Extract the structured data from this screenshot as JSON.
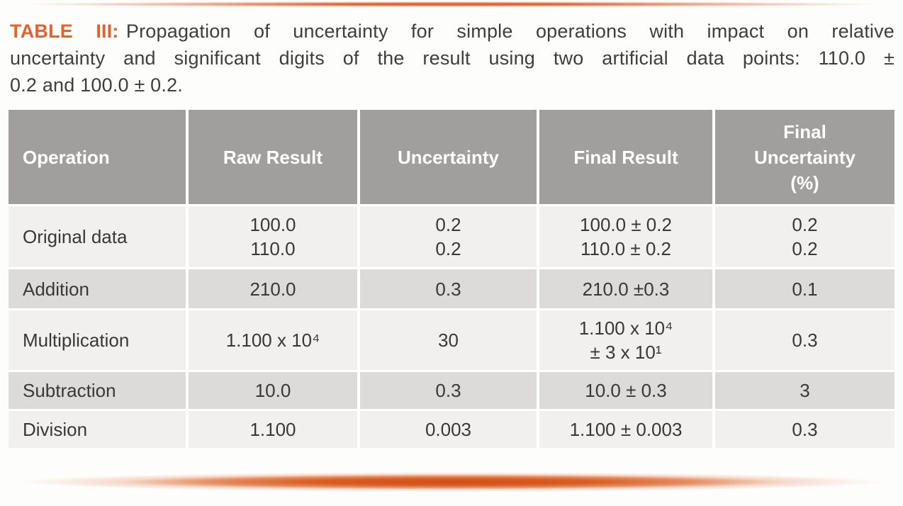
{
  "colors": {
    "accent_orange": "#e2622e",
    "accent_deep_orange": "#cf4e15",
    "header_gray": "#a09f9d",
    "row_light": "#f1f0ee",
    "row_shade": "#dcdbd9"
  },
  "caption": {
    "label": "TABLE III:",
    "line1_rest": "Propagation of uncertainty for simple operations with impact on relative",
    "line2": "uncertainty and significant digits of the result using two artificial data points: 110.0 ±",
    "line3": "0.2 and 100.0 ± 0.2."
  },
  "table": {
    "headers": [
      {
        "lines": [
          "Operation"
        ]
      },
      {
        "lines": [
          "Raw Result"
        ]
      },
      {
        "lines": [
          "Uncertainty"
        ]
      },
      {
        "lines": [
          "Final Result"
        ]
      },
      {
        "lines": [
          "Final",
          "Uncertainty",
          "(%)"
        ]
      }
    ],
    "rows": [
      {
        "operation": "Original data",
        "raw_result": [
          "100.0",
          "110.0"
        ],
        "uncertainty": [
          "0.2",
          "0.2"
        ],
        "final_result": [
          "100.0 ± 0.2",
          "110.0 ± 0.2"
        ],
        "final_uncertainty_pct": [
          "0.2",
          "0.2"
        ]
      },
      {
        "operation": "Addition",
        "raw_result": [
          "210.0"
        ],
        "uncertainty": [
          "0.3"
        ],
        "final_result": [
          "210.0 ±0.3"
        ],
        "final_uncertainty_pct": [
          "0.1"
        ]
      },
      {
        "operation": "Multiplication",
        "raw_result": [
          "1.100 x 10⁴"
        ],
        "uncertainty": [
          "30"
        ],
        "final_result": [
          "1.100 x 10⁴",
          "± 3 x 10¹"
        ],
        "final_uncertainty_pct": [
          "0.3"
        ]
      },
      {
        "operation": "Subtraction",
        "raw_result": [
          "10.0"
        ],
        "uncertainty": [
          "0.3"
        ],
        "final_result": [
          "10.0 ± 0.3"
        ],
        "final_uncertainty_pct": [
          "3"
        ]
      },
      {
        "operation": "Division",
        "raw_result": [
          "1.100"
        ],
        "uncertainty": [
          "0.003"
        ],
        "final_result": [
          "1.100 ± 0.003"
        ],
        "final_uncertainty_pct": [
          "0.3"
        ]
      }
    ]
  }
}
